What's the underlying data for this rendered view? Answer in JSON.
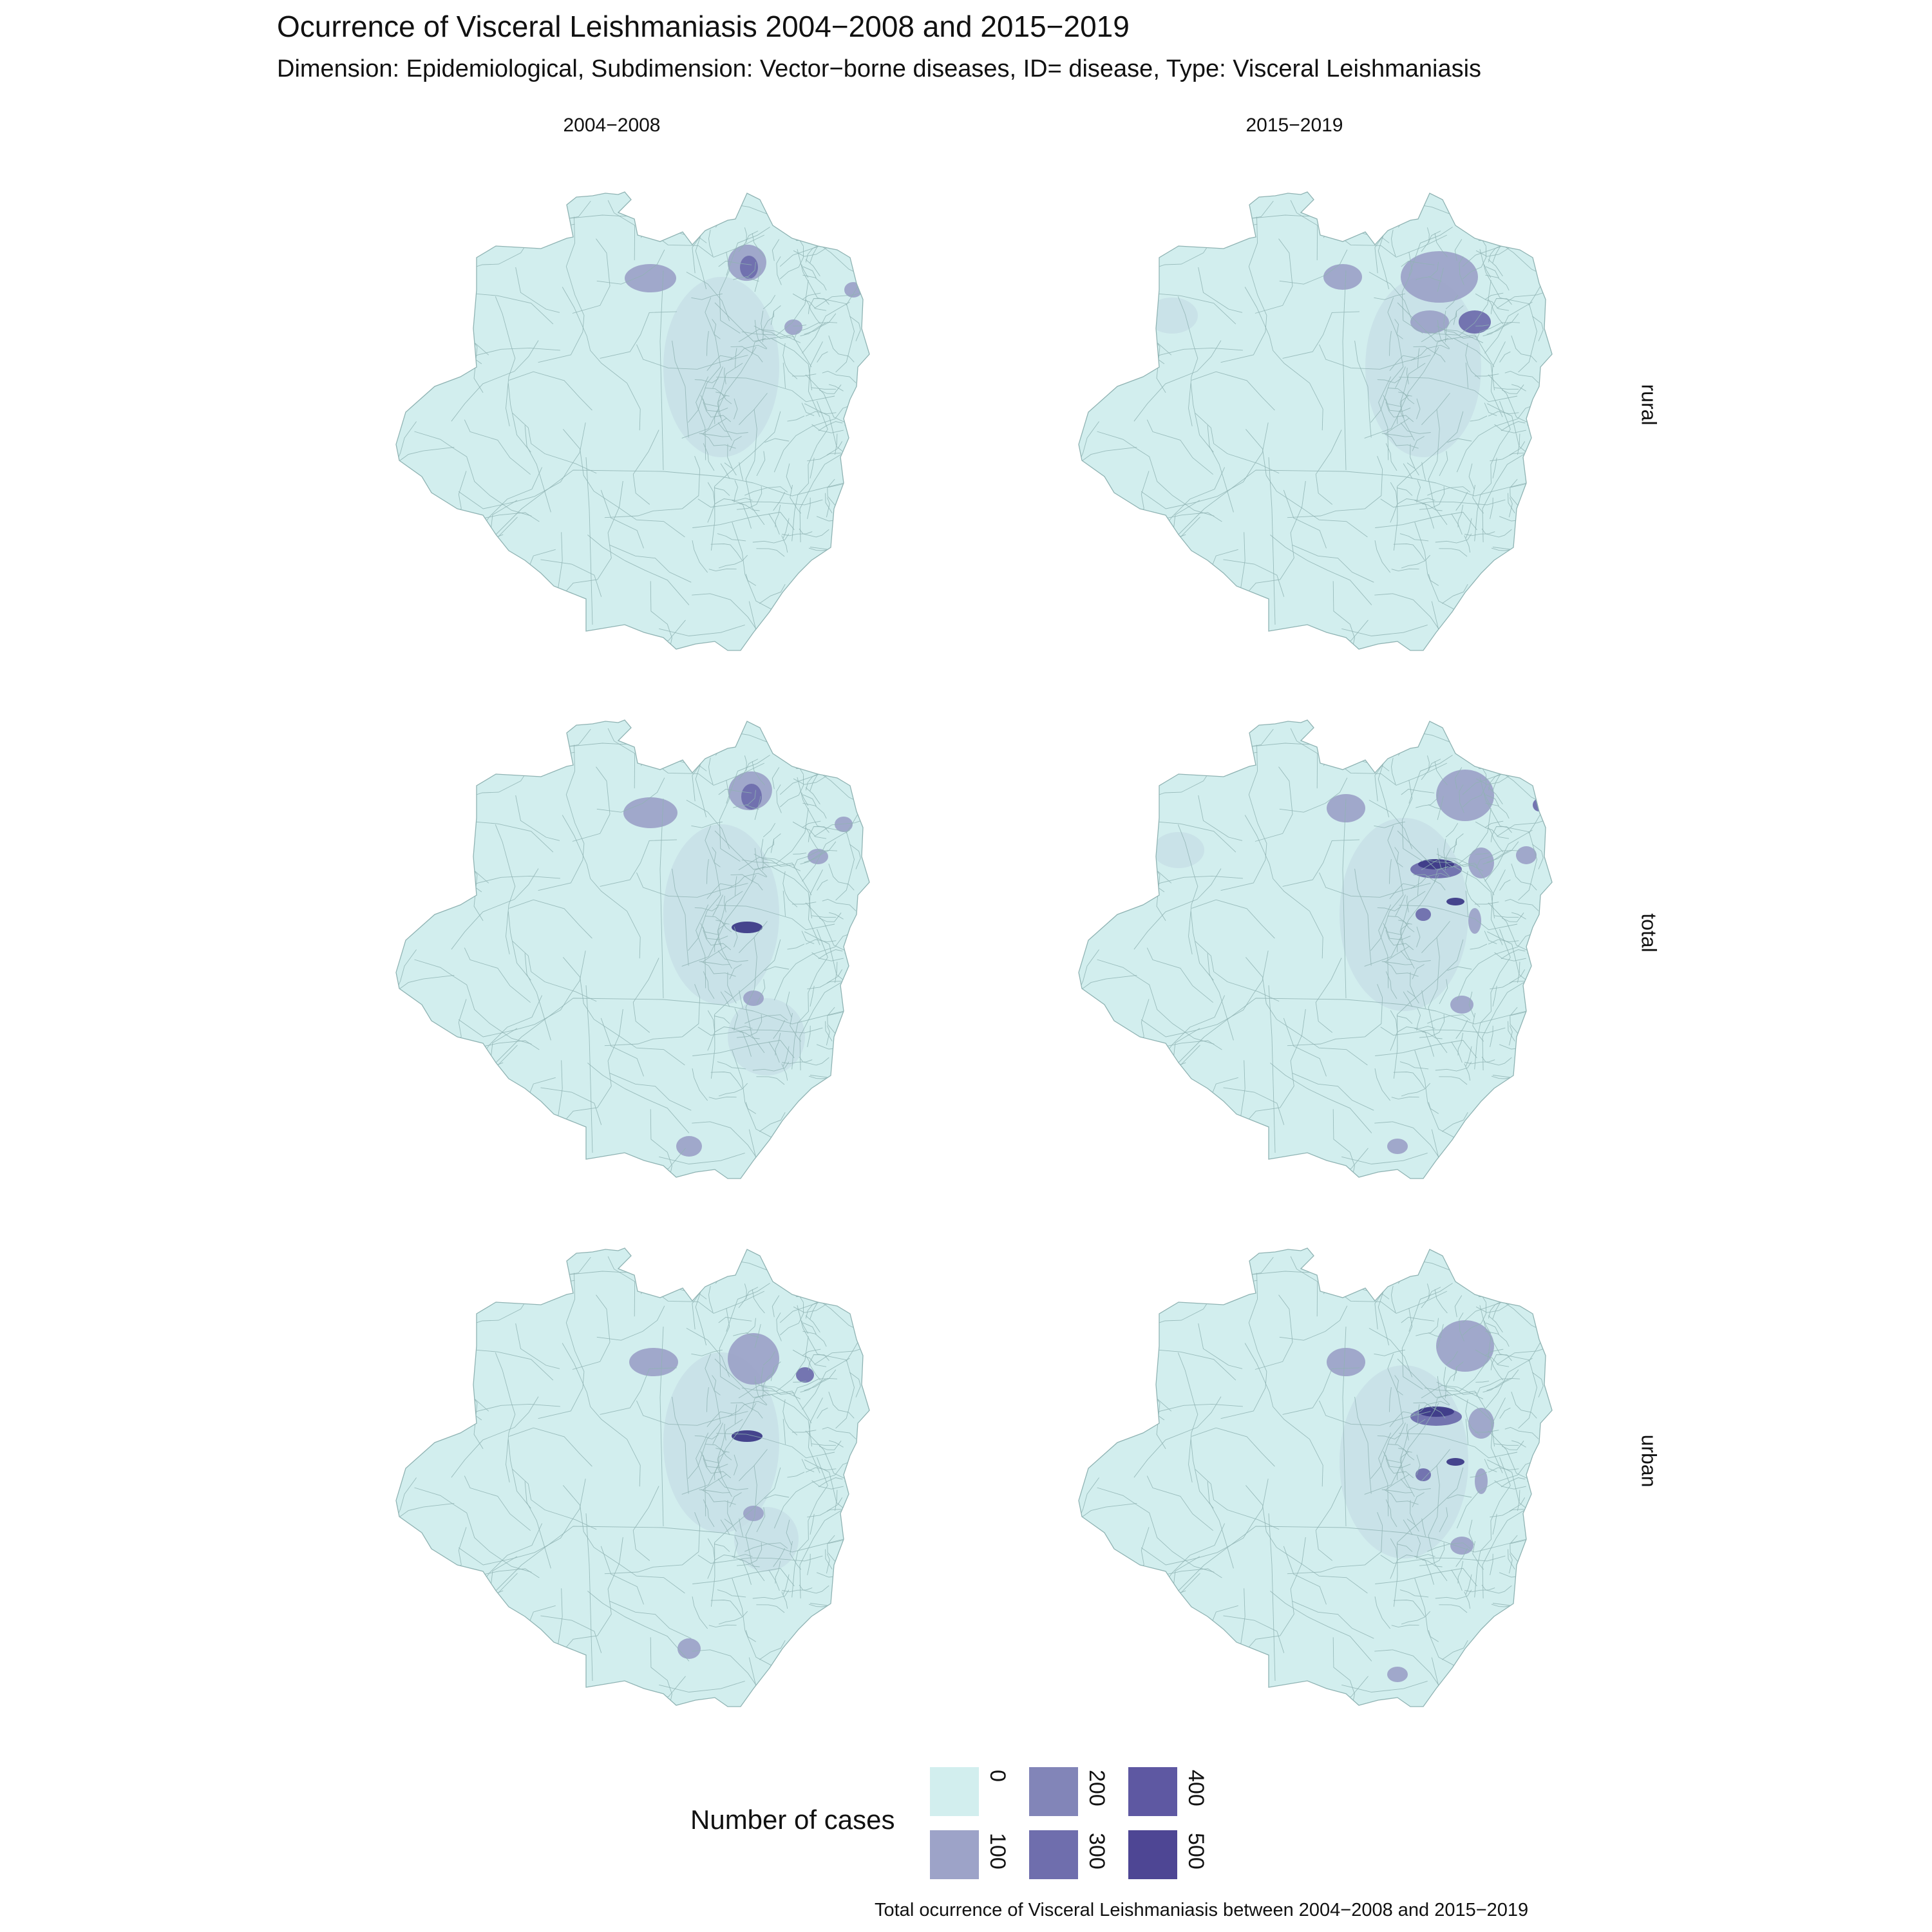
{
  "title": "Ocurrence of Visceral Leishmaniasis 2004−2008 and 2015−2019",
  "subtitle": "Dimension: Epidemiological, Subdimension: Vector−borne diseases, ID= disease, Type: Visceral Leishmaniasis",
  "columns": [
    "2004−2008",
    "2015−2019"
  ],
  "rows": [
    "rural",
    "total",
    "urban"
  ],
  "legend": {
    "title": "Number of cases",
    "items": [
      {
        "label": "0",
        "color": "#d2eeee"
      },
      {
        "label": "100",
        "color": "#9da3c8"
      },
      {
        "label": "200",
        "color": "#8285b8"
      },
      {
        "label": "300",
        "color": "#6f6ead"
      },
      {
        "label": "400",
        "color": "#5e58a2"
      },
      {
        "label": "500",
        "color": "#4e4694"
      }
    ]
  },
  "caption": "Total ocurrence of Visceral Leishmaniasis between 2004−2008 and 2015−2019",
  "colors": {
    "base_fill": "#d2eeee",
    "border": "#8fb3b3",
    "low": "#c6dde6",
    "mid": "#9da3c8",
    "high": "#6f6ead",
    "max": "#3e3b88"
  }
}
